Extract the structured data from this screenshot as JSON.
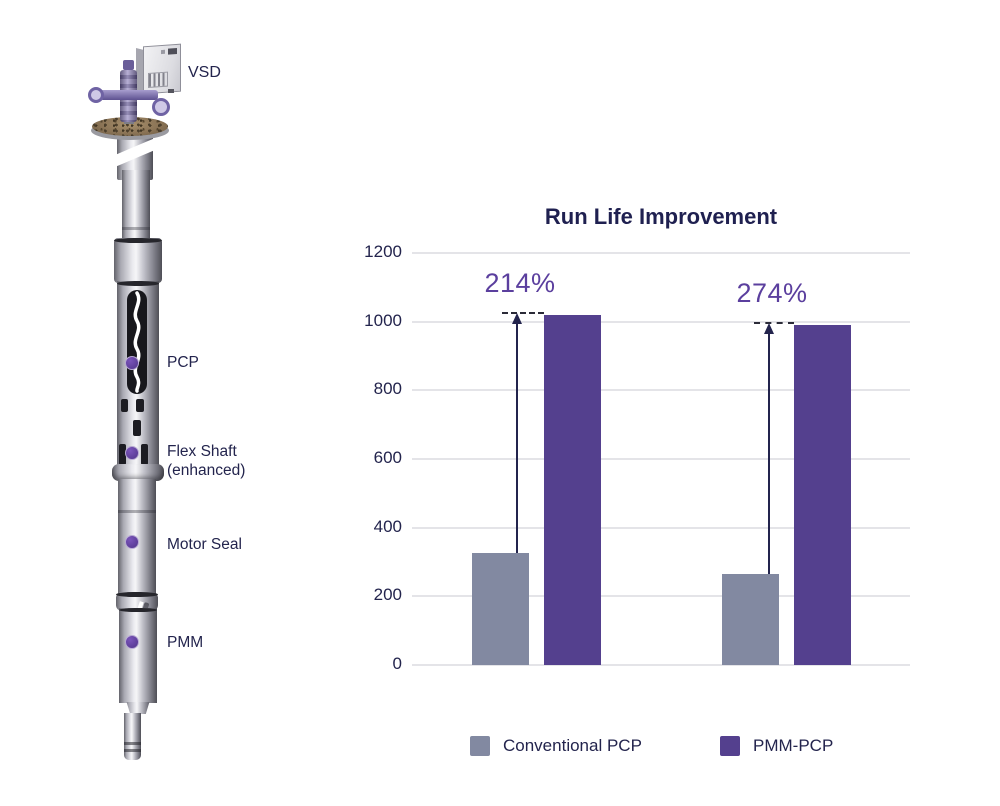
{
  "diagram": {
    "vsd_label": "VSD",
    "pcp_label": "PCP",
    "flex_shaft_label_line1": "Flex Shaft",
    "flex_shaft_label_line2": "(enhanced)",
    "motor_seal_label": "Motor Seal",
    "pmm_label": "PMM"
  },
  "colors": {
    "conventional_gray": "#8289a1",
    "pmm_purple": "#54408e",
    "annotation_purple": "#5b3f9e",
    "text_navy": "#23244d",
    "marker_purple": "#5e3a9e"
  },
  "chart_data": {
    "type": "bar",
    "title": "Run Life Improvement",
    "categories": [
      "",
      ""
    ],
    "series": [
      {
        "name": "Conventional PCP",
        "color": "#8289a1",
        "values": [
          325,
          265
        ]
      },
      {
        "name": "PMM-PCP",
        "color": "#54408e",
        "values": [
          1020,
          990
        ]
      }
    ],
    "annotations": [
      {
        "text": "214%",
        "group": 0
      },
      {
        "text": "274%",
        "group": 1
      }
    ],
    "xlabel": "",
    "ylabel": "",
    "ylim": [
      0,
      1200
    ],
    "yticks": [
      0,
      200,
      400,
      600,
      800,
      1000,
      1200
    ],
    "grid": true,
    "legend_position": "bottom"
  }
}
